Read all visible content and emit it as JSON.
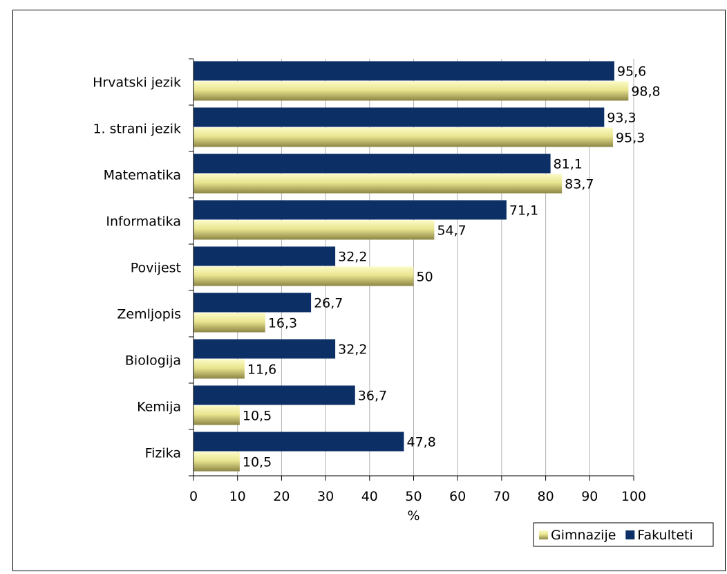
{
  "chart_data": {
    "type": "bar",
    "orientation": "horizontal",
    "categories": [
      "Hrvatski jezik",
      "1. strani jezik",
      "Matematika",
      "Informatika",
      "Povijest",
      "Zemljopis",
      "Biologija",
      "Kemija",
      "Fizika"
    ],
    "series": [
      {
        "name": "Fakulteti",
        "color": "#0c2f66",
        "values": [
          95.6,
          93.3,
          81.1,
          71.1,
          32.2,
          26.7,
          32.2,
          36.7,
          47.8
        ]
      },
      {
        "name": "Gimnazije",
        "color": "#e6e28a",
        "values": [
          98.8,
          95.3,
          83.7,
          54.7,
          50,
          16.3,
          11.6,
          10.5,
          10.5
        ]
      }
    ],
    "value_labels": {
      "Fakulteti": [
        "95,6",
        "93,3",
        "81,1",
        "71,1",
        "32,2",
        "26,7",
        "32,2",
        "36,7",
        "47,8"
      ],
      "Gimnazije": [
        "98,8",
        "95,3",
        "83,7",
        "54,7",
        "50",
        "16,3",
        "11,6",
        "10,5",
        "10,5"
      ]
    },
    "xlabel": "%",
    "ylabel": "",
    "title": "",
    "xlim": [
      0,
      100
    ],
    "xticks": [
      "0",
      "10",
      "20",
      "30",
      "40",
      "50",
      "60",
      "70",
      "80",
      "90",
      "100"
    ],
    "grid": "vertical",
    "legend": {
      "position": "bottom-right",
      "entries": [
        "Gimnazije",
        "Fakulteti"
      ]
    }
  }
}
